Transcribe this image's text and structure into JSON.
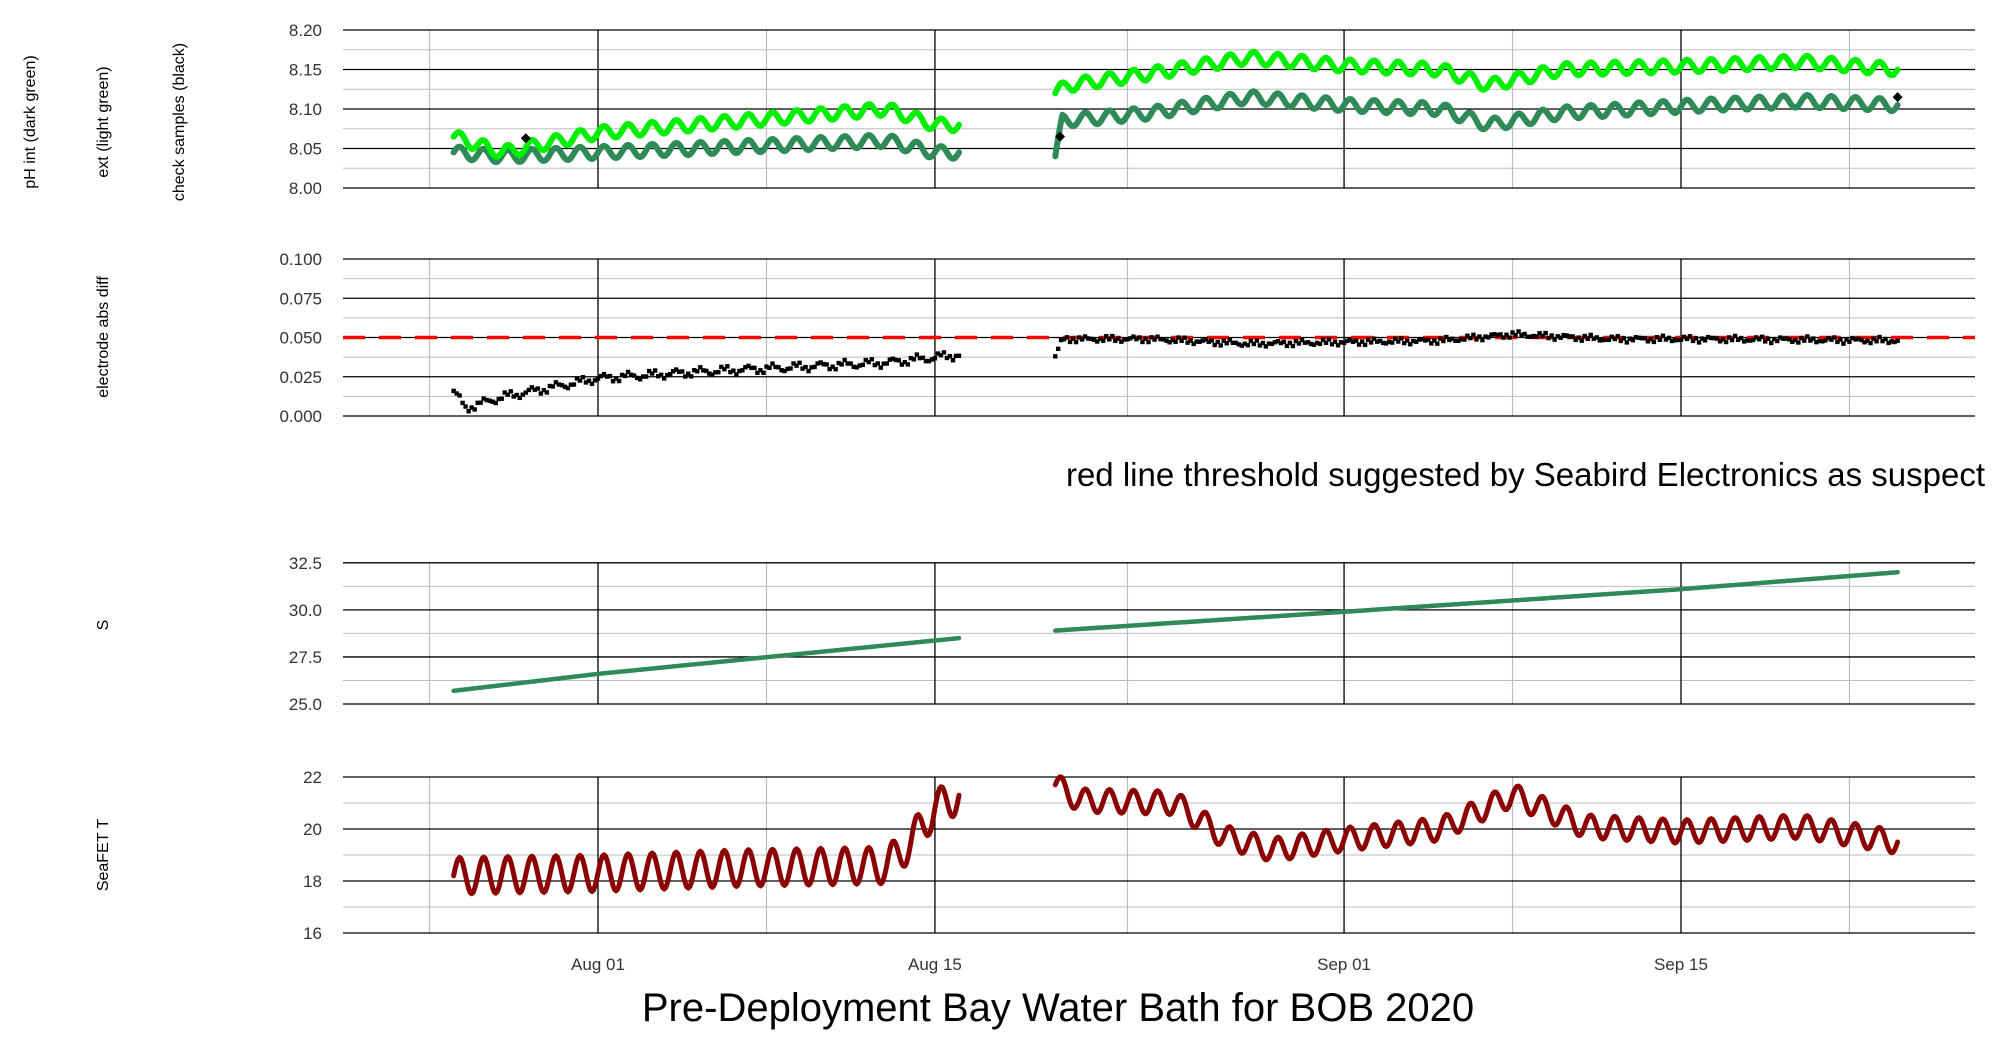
{
  "figure": {
    "title": "Pre-Deployment Bay Water Bath for BOB 2020",
    "note": "red line threshold suggested by Seabird Electronics as suspect",
    "x_tick_labels": [
      "Aug 01",
      "Aug 15",
      "Sep 01",
      "Sep 15"
    ]
  },
  "chart_data": [
    {
      "type": "line",
      "ylabel": [
        "pH int (dark green)",
        "ext (light green)",
        "check samples (black)"
      ],
      "ylim": [
        8.0,
        8.2
      ],
      "y_ticks": [
        8.0,
        8.05,
        8.1,
        8.15,
        8.2
      ],
      "y_tick_labels": [
        "8.00",
        "8.05",
        "8.10",
        "8.15",
        "8.20"
      ],
      "colors": {
        "int": "#2e8b57",
        "ext": "#00ee00",
        "check": "#000000"
      },
      "series": [
        {
          "name": "int",
          "segments": [
            {
              "x": [
                "2020-07-26",
                "2020-07-28",
                "2020-08-01",
                "2020-08-05",
                "2020-08-09",
                "2020-08-13",
                "2020-08-15",
                "2020-08-16"
              ],
              "y": [
                8.045,
                8.04,
                8.045,
                8.05,
                8.055,
                8.06,
                8.045,
                8.045
              ],
              "amp": 0.008
            },
            {
              "x": [
                "2020-08-20",
                "2020-08-20.3",
                "2020-08-24",
                "2020-08-28",
                "2020-09-01",
                "2020-09-05",
                "2020-09-07",
                "2020-09-10",
                "2020-09-16",
                "2020-09-20",
                "2020-09-24"
              ],
              "y": [
                8.04,
                8.085,
                8.095,
                8.115,
                8.105,
                8.1,
                8.08,
                8.095,
                8.105,
                8.11,
                8.105
              ],
              "amp": 0.008
            }
          ]
        },
        {
          "name": "ext",
          "segments": [
            {
              "x": [
                "2020-07-26",
                "2020-07-28",
                "2020-08-01",
                "2020-08-05",
                "2020-08-09",
                "2020-08-13",
                "2020-08-15",
                "2020-08-16"
              ],
              "y": [
                8.065,
                8.045,
                8.07,
                8.08,
                8.09,
                8.1,
                8.08,
                8.08
              ],
              "amp": 0.008
            },
            {
              "x": [
                "2020-08-20",
                "2020-08-20.5",
                "2020-08-24",
                "2020-08-28",
                "2020-09-01",
                "2020-09-05",
                "2020-09-07",
                "2020-09-10",
                "2020-09-16",
                "2020-09-20",
                "2020-09-24"
              ],
              "y": [
                8.12,
                8.13,
                8.145,
                8.165,
                8.155,
                8.15,
                8.13,
                8.15,
                8.155,
                8.16,
                8.15
              ],
              "amp": 0.008
            }
          ]
        },
        {
          "name": "check",
          "points": [
            {
              "x": "2020-07-29",
              "y": 8.063
            },
            {
              "x": "2020-08-20.2",
              "y": 8.065
            },
            {
              "x": "2020-09-24",
              "y": 8.115
            }
          ]
        }
      ]
    },
    {
      "type": "scatter",
      "ylabel": [
        "electrode abs diff"
      ],
      "ylim": [
        0.0,
        0.1
      ],
      "y_ticks": [
        0.0,
        0.025,
        0.05,
        0.075,
        0.1
      ],
      "y_tick_labels": [
        "0.000",
        "0.025",
        "0.050",
        "0.075",
        "0.100"
      ],
      "threshold": 0.05,
      "colors": {
        "points": "#000000",
        "threshold": "#ff0000"
      },
      "series": [
        {
          "name": "diff",
          "segments": [
            {
              "x": [
                "2020-07-26",
                "2020-07-26.5",
                "2020-07-28",
                "2020-08-01",
                "2020-08-05",
                "2020-08-09",
                "2020-08-13",
                "2020-08-16"
              ],
              "y": [
                0.016,
                0.005,
                0.012,
                0.024,
                0.028,
                0.031,
                0.034,
                0.039
              ],
              "amp": 0.002
            },
            {
              "x": [
                "2020-08-20",
                "2020-08-20.3",
                "2020-08-24",
                "2020-08-28",
                "2020-09-01",
                "2020-09-05",
                "2020-09-08",
                "2020-09-12",
                "2020-09-16",
                "2020-09-24"
              ],
              "y": [
                0.038,
                0.049,
                0.049,
                0.046,
                0.047,
                0.048,
                0.052,
                0.049,
                0.049,
                0.048
              ],
              "amp": 0.001
            }
          ]
        }
      ]
    },
    {
      "type": "line",
      "ylabel": [
        "S"
      ],
      "ylim": [
        25.0,
        33.5
      ],
      "y_ticks": [
        25.0,
        27.5,
        30.0,
        32.5
      ],
      "y_tick_labels": [
        "25.0",
        "27.5",
        "30.0",
        "32.5"
      ],
      "colors": {
        "line": "#2e8b57"
      },
      "series": [
        {
          "name": "S",
          "segments": [
            {
              "x": [
                "2020-07-26",
                "2020-08-01",
                "2020-08-16"
              ],
              "y": [
                25.7,
                26.6,
                28.5
              ],
              "amp": 0
            },
            {
              "x": [
                "2020-08-20",
                "2020-09-01",
                "2020-09-15",
                "2020-09-24"
              ],
              "y": [
                28.9,
                29.9,
                31.1,
                32.0
              ],
              "amp": 0
            }
          ]
        }
      ]
    },
    {
      "type": "line",
      "ylabel": [
        "SeaFET T"
      ],
      "ylim": [
        16,
        22
      ],
      "y_ticks": [
        16,
        18,
        20,
        22
      ],
      "y_tick_labels": [
        "16",
        "18",
        "20",
        "22"
      ],
      "colors": {
        "line": "#8b0000"
      },
      "series": [
        {
          "name": "T",
          "segments": [
            {
              "x": [
                "2020-07-26",
                "2020-08-01",
                "2020-08-07",
                "2020-08-13",
                "2020-08-14",
                "2020-08-15",
                "2020-08-16"
              ],
              "y": [
                18.2,
                18.3,
                18.5,
                18.6,
                19.5,
                20.8,
                21.3
              ],
              "amp": 0.7
            },
            {
              "x": [
                "2020-08-20",
                "2020-08-21",
                "2020-08-25",
                "2020-08-27",
                "2020-08-29",
                "2020-09-01",
                "2020-09-05",
                "2020-09-08",
                "2020-09-11",
                "2020-09-15",
                "2020-09-20",
                "2020-09-24"
              ],
              "y": [
                21.7,
                21.1,
                21.0,
                19.7,
                19.2,
                19.6,
                20.0,
                21.3,
                20.1,
                19.9,
                20.1,
                19.5
              ],
              "amp": 0.45
            }
          ]
        }
      ]
    }
  ]
}
